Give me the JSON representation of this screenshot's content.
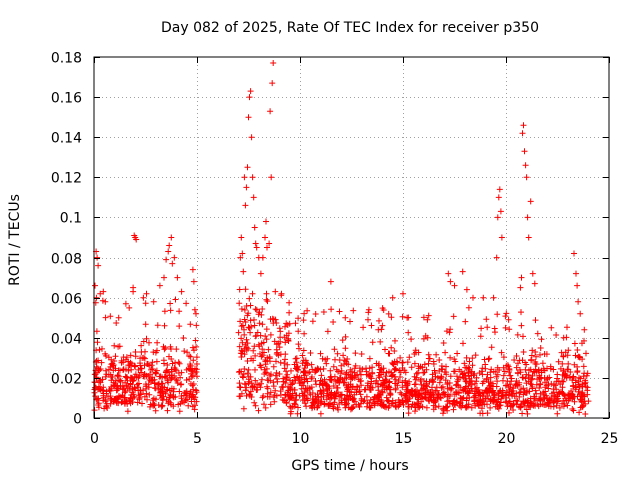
{
  "chart_data": {
    "type": "scatter",
    "title": "Day 082 of 2025, Rate Of TEC Index for receiver p350",
    "xlabel": "GPS time / hours",
    "ylabel": "ROTI / TECUs",
    "xlim": [
      0,
      25
    ],
    "ylim": [
      0,
      0.18
    ],
    "xticks": [
      "0",
      "5",
      "10",
      "15",
      "20",
      "25"
    ],
    "yticks": [
      "0",
      "0.02",
      "0.04",
      "0.06",
      "0.08",
      "0.1",
      "0.12",
      "0.14",
      "0.16",
      "0.18"
    ],
    "grid": true,
    "marker": "plus",
    "color": "#ff0000",
    "data_gap_hours": [
      5.1,
      6.9
    ],
    "series": [
      {
        "name": "ROTI",
        "points": [
          [
            0.05,
            0.066
          ],
          [
            0.1,
            0.083
          ],
          [
            0.15,
            0.08
          ],
          [
            0.2,
            0.076
          ],
          [
            0.3,
            0.062
          ],
          [
            0.45,
            0.063
          ],
          [
            0.55,
            0.058
          ],
          [
            1.2,
            0.05
          ],
          [
            1.55,
            0.057
          ],
          [
            1.9,
            0.063
          ],
          [
            1.9,
            0.065
          ],
          [
            1.95,
            0.091
          ],
          [
            2.0,
            0.09
          ],
          [
            2.05,
            0.089
          ],
          [
            2.4,
            0.06
          ],
          [
            2.55,
            0.062
          ],
          [
            2.9,
            0.058
          ],
          [
            3.2,
            0.066
          ],
          [
            3.4,
            0.07
          ],
          [
            3.5,
            0.079
          ],
          [
            3.6,
            0.083
          ],
          [
            3.65,
            0.086
          ],
          [
            3.75,
            0.09
          ],
          [
            3.8,
            0.077
          ],
          [
            3.9,
            0.08
          ],
          [
            4.05,
            0.07
          ],
          [
            4.25,
            0.063
          ],
          [
            4.8,
            0.074
          ],
          [
            4.85,
            0.068
          ],
          [
            4.9,
            0.054
          ],
          [
            4.95,
            0.052
          ],
          [
            7.1,
            0.08
          ],
          [
            7.15,
            0.09
          ],
          [
            7.2,
            0.082
          ],
          [
            7.25,
            0.073
          ],
          [
            7.3,
            0.12
          ],
          [
            7.35,
            0.106
          ],
          [
            7.4,
            0.115
          ],
          [
            7.45,
            0.125
          ],
          [
            7.5,
            0.15
          ],
          [
            7.55,
            0.16
          ],
          [
            7.6,
            0.163
          ],
          [
            7.65,
            0.14
          ],
          [
            7.7,
            0.12
          ],
          [
            7.75,
            0.11
          ],
          [
            7.8,
            0.095
          ],
          [
            7.85,
            0.087
          ],
          [
            7.9,
            0.085
          ],
          [
            8.0,
            0.08
          ],
          [
            8.1,
            0.072
          ],
          [
            8.2,
            0.08
          ],
          [
            8.3,
            0.09
          ],
          [
            8.35,
            0.098
          ],
          [
            8.4,
            0.085
          ],
          [
            8.5,
            0.087
          ],
          [
            8.55,
            0.153
          ],
          [
            8.6,
            0.12
          ],
          [
            8.65,
            0.167
          ],
          [
            8.7,
            0.177
          ],
          [
            8.8,
            0.063
          ],
          [
            9.1,
            0.062
          ],
          [
            9.5,
            0.047
          ],
          [
            10.2,
            0.042
          ],
          [
            11.5,
            0.068
          ],
          [
            12.2,
            0.05
          ],
          [
            13.3,
            0.049
          ],
          [
            13.8,
            0.044
          ],
          [
            14.5,
            0.06
          ],
          [
            15.0,
            0.062
          ],
          [
            15.2,
            0.05
          ],
          [
            16.2,
            0.04
          ],
          [
            17.2,
            0.072
          ],
          [
            17.3,
            0.068
          ],
          [
            17.5,
            0.066
          ],
          [
            17.9,
            0.073
          ],
          [
            18.1,
            0.064
          ],
          [
            18.2,
            0.055
          ],
          [
            18.4,
            0.06
          ],
          [
            18.9,
            0.06
          ],
          [
            19.4,
            0.06
          ],
          [
            19.55,
            0.08
          ],
          [
            19.6,
            0.1
          ],
          [
            19.65,
            0.11
          ],
          [
            19.7,
            0.114
          ],
          [
            19.75,
            0.103
          ],
          [
            19.8,
            0.09
          ],
          [
            20.7,
            0.065
          ],
          [
            20.75,
            0.07
          ],
          [
            20.8,
            0.142
          ],
          [
            20.85,
            0.146
          ],
          [
            20.9,
            0.133
          ],
          [
            20.95,
            0.126
          ],
          [
            21.0,
            0.12
          ],
          [
            21.05,
            0.1
          ],
          [
            21.1,
            0.09
          ],
          [
            21.2,
            0.108
          ],
          [
            21.3,
            0.072
          ],
          [
            21.4,
            0.067
          ],
          [
            22.2,
            0.045
          ],
          [
            22.8,
            0.04
          ],
          [
            23.3,
            0.082
          ],
          [
            23.4,
            0.072
          ],
          [
            23.45,
            0.066
          ],
          [
            23.5,
            0.058
          ],
          [
            23.6,
            0.052
          ],
          [
            23.8,
            0.044
          ]
        ],
        "dense_bands": [
          {
            "x": [
              0.0,
              5.0
            ],
            "y_min": 0.003,
            "y_typical": [
              0.007,
              0.04
            ],
            "y_peak": 0.06
          },
          {
            "x": [
              7.0,
              9.5
            ],
            "y_min": 0.003,
            "y_typical": [
              0.01,
              0.06
            ],
            "y_peak": 0.07
          },
          {
            "x": [
              9.5,
              24.0
            ],
            "y_min": 0.002,
            "y_typical": [
              0.005,
              0.035
            ],
            "y_peak": 0.055
          }
        ]
      }
    ]
  }
}
